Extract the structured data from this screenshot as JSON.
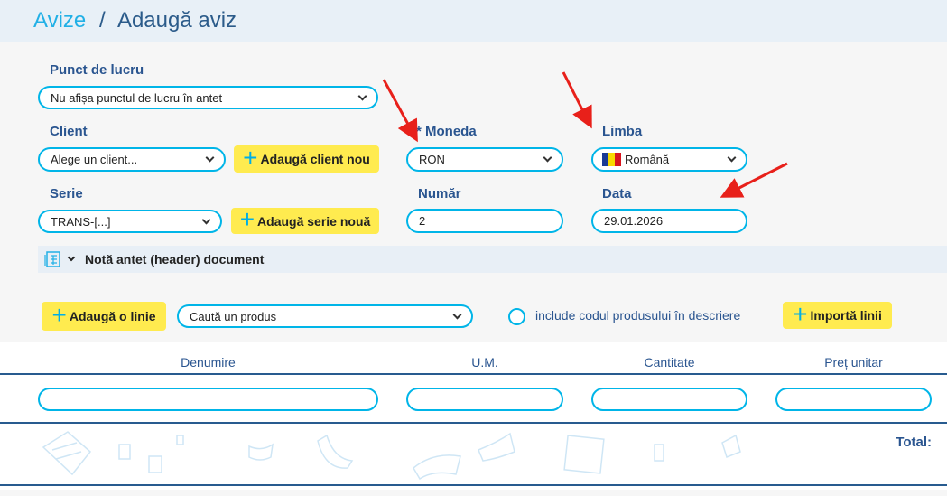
{
  "breadcrumb": {
    "parent": "Avize",
    "separator": "/",
    "current": "Adaugă aviz"
  },
  "form": {
    "punct_label": "Punct de lucru",
    "punct_value": "Nu afișa punctul de lucru în antet",
    "client_label": "Client",
    "client_value": "Alege un client...",
    "add_client": "Adaugă client nou",
    "serie_label": "Serie",
    "serie_value": "TRANS-[...]",
    "add_serie": "Adaugă serie nouă",
    "moneda_label": "* Moneda",
    "moneda_value": "RON",
    "limba_label": "Limba",
    "limba_value": "Română",
    "numar_label": "Număr",
    "numar_value": "2",
    "data_label": "Data",
    "data_value": "29.01.2026"
  },
  "nota": {
    "label": "Notă antet (header) document"
  },
  "toolbar": {
    "add_line": "Adaugă o linie",
    "search_placeholder": "Caută un produs",
    "include_code": "include codul produsului în descriere",
    "import": "Importă linii"
  },
  "table": {
    "columns": [
      "Denumire",
      "U.M.",
      "Cantitate",
      "Preț unitar"
    ],
    "total_label": "Total:"
  },
  "colors": {
    "accent": "#00b5e8",
    "button": "#ffeb4f",
    "label": "#2a5590",
    "annotation_arrow": "#e8201a"
  }
}
